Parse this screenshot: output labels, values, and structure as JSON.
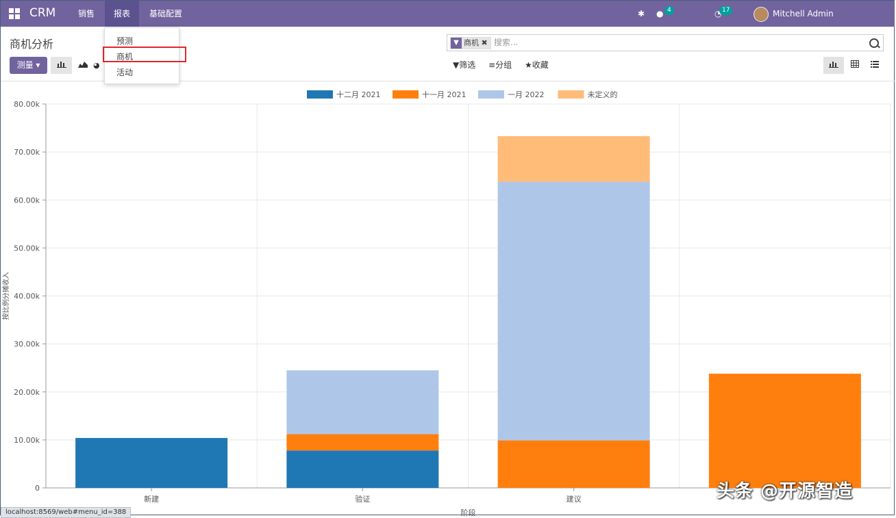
{
  "navbar": {
    "brand": "CRM",
    "menus": [
      "销售",
      "报表",
      "基础配置"
    ],
    "messages_count": "4",
    "activities_count": "17",
    "user": "Mitchell Admin (O15_Comm01)"
  },
  "dropdown": {
    "items": [
      "预测",
      "商机",
      "活动"
    ]
  },
  "control": {
    "title": "商机分析",
    "measure_label": "测量",
    "search_facet": "商机",
    "search_placeholder": "搜索...",
    "filter_label": "筛选",
    "group_label": "分组",
    "favorite_label": "收藏"
  },
  "chart_data": {
    "type": "bar",
    "stacked": true,
    "categories": [
      "新建",
      "验证",
      "建议",
      ""
    ],
    "series": [
      {
        "name": "十二月 2021",
        "color": "#1f77b4",
        "values": [
          10400,
          7800,
          0,
          0
        ]
      },
      {
        "name": "十一月 2021",
        "color": "#ff7f0e",
        "values": [
          0,
          3400,
          9900,
          23800
        ]
      },
      {
        "name": "一月 2022",
        "color": "#aec7e8",
        "values": [
          0,
          13300,
          53900,
          0
        ]
      },
      {
        "name": "未定义的",
        "color": "#ffbb78",
        "values": [
          0,
          0,
          9500,
          0
        ]
      }
    ],
    "ylim": [
      0,
      80000
    ],
    "yticks": [
      "0",
      "10.00k",
      "20.00k",
      "30.00k",
      "40.00k",
      "50.00k",
      "60.00k",
      "70.00k",
      "80.00k"
    ],
    "ylabel": "按比例分摊收入",
    "xlabel": "阶段",
    "legend": "top-center",
    "grid": true
  },
  "watermark": "头条 @开源智造",
  "status_url": "localhost:8569/web#menu_id=388"
}
